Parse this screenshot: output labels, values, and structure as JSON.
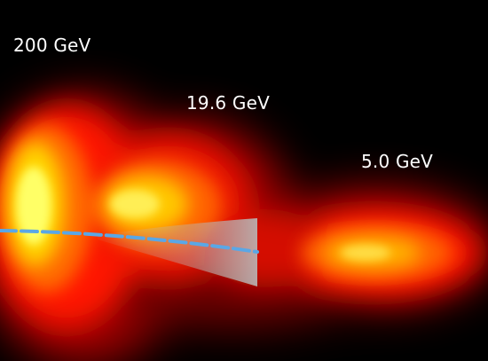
{
  "labels": {
    "high": "200 GeV",
    "mid": "19.6 GeV",
    "low": "5.0 GeV"
  },
  "colors": {
    "background": "#000000",
    "heat_outer": "#cc0000",
    "heat_mid": "#ff3300",
    "heat_hot": "#ffff33",
    "trajectory": "#5aa7e6",
    "uncertainty_band": "#b0b0b0",
    "label_text": "#ffffff"
  }
}
